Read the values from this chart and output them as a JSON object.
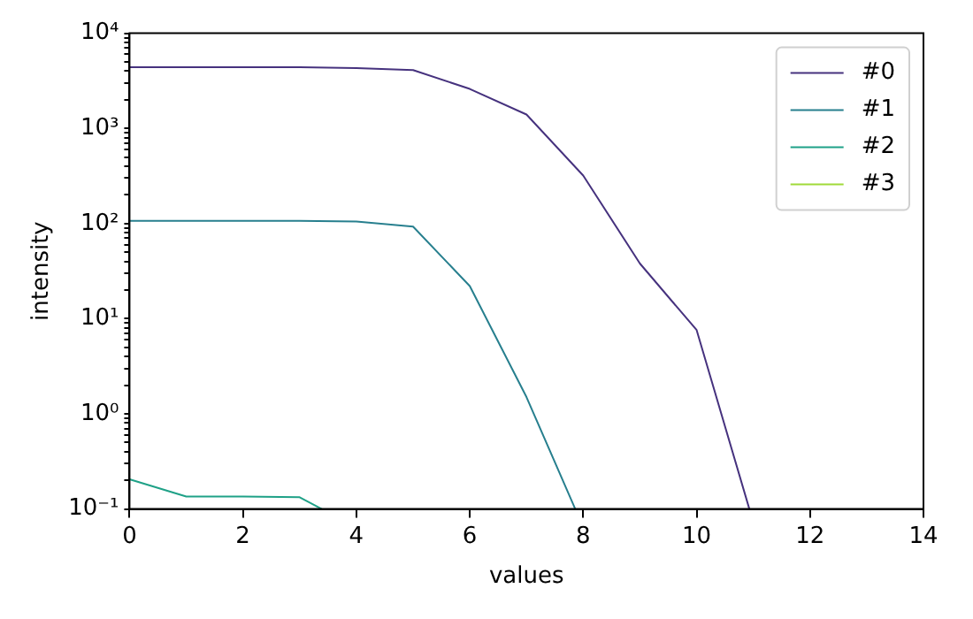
{
  "chart_data": {
    "type": "line",
    "xlabel": "values",
    "ylabel": "intensity",
    "log": "y",
    "grid": false,
    "legend": "top right",
    "marker": "none",
    "line_style": "solid",
    "xlim": [
      0,
      14
    ],
    "xticks": [
      0,
      2,
      4,
      6,
      8,
      10,
      12,
      14
    ],
    "ylim": [
      0.1,
      10000
    ],
    "yticks": [
      {
        "value": 0.1,
        "label": "10⁻¹"
      },
      {
        "value": 0.2,
        "label": null
      },
      {
        "value": 0.3,
        "label": null
      },
      {
        "value": 0.4,
        "label": null
      },
      {
        "value": 0.5,
        "label": null
      },
      {
        "value": 0.6,
        "label": null
      },
      {
        "value": 0.7,
        "label": null
      },
      {
        "value": 0.8,
        "label": null
      },
      {
        "value": 0.9,
        "label": null
      },
      {
        "value": 1,
        "label": "10⁰"
      },
      {
        "value": 2,
        "label": null
      },
      {
        "value": 3,
        "label": null
      },
      {
        "value": 4,
        "label": null
      },
      {
        "value": 5,
        "label": null
      },
      {
        "value": 6,
        "label": null
      },
      {
        "value": 7,
        "label": null
      },
      {
        "value": 8,
        "label": null
      },
      {
        "value": 9,
        "label": null
      },
      {
        "value": 10,
        "label": "10¹"
      },
      {
        "value": 20,
        "label": null
      },
      {
        "value": 30,
        "label": null
      },
      {
        "value": 40,
        "label": null
      },
      {
        "value": 50,
        "label": null
      },
      {
        "value": 60,
        "label": null
      },
      {
        "value": 70,
        "label": null
      },
      {
        "value": 80,
        "label": null
      },
      {
        "value": 90,
        "label": null
      },
      {
        "value": 100,
        "label": "10²"
      },
      {
        "value": 200,
        "label": null
      },
      {
        "value": 300,
        "label": null
      },
      {
        "value": 400,
        "label": null
      },
      {
        "value": 500,
        "label": null
      },
      {
        "value": 600,
        "label": null
      },
      {
        "value": 700,
        "label": null
      },
      {
        "value": 800,
        "label": null
      },
      {
        "value": 900,
        "label": null
      },
      {
        "value": 1000,
        "label": "10³"
      },
      {
        "value": 2000,
        "label": null
      },
      {
        "value": 3000,
        "label": null
      },
      {
        "value": 4000,
        "label": null
      },
      {
        "value": 5000,
        "label": null
      },
      {
        "value": 6000,
        "label": null
      },
      {
        "value": 7000,
        "label": null
      },
      {
        "value": 8000,
        "label": null
      },
      {
        "value": 9000,
        "label": null
      },
      {
        "value": 10000,
        "label": "10⁴"
      }
    ],
    "series": [
      {
        "name": "#0",
        "color": "#46327e",
        "x": [
          0,
          1,
          2,
          3,
          4,
          5,
          6,
          7,
          8,
          9,
          10,
          10.93
        ],
        "values": [
          4400,
          4400,
          4400,
          4400,
          4300,
          4100,
          2600,
          1400,
          320,
          38,
          7.6,
          0.1
        ]
      },
      {
        "name": "#1",
        "color": "#277f8e",
        "x": [
          0,
          1,
          2,
          3,
          4,
          5,
          6,
          7,
          7.86
        ],
        "values": [
          107,
          107,
          107,
          107,
          105,
          93,
          22,
          1.5,
          0.1
        ]
      },
      {
        "name": "#2",
        "color": "#1fa187",
        "x": [
          0,
          1,
          2,
          3,
          3.39
        ],
        "values": [
          0.205,
          0.135,
          0.135,
          0.133,
          0.1
        ]
      },
      {
        "name": "#3",
        "color": "#a0da39"
      }
    ]
  }
}
